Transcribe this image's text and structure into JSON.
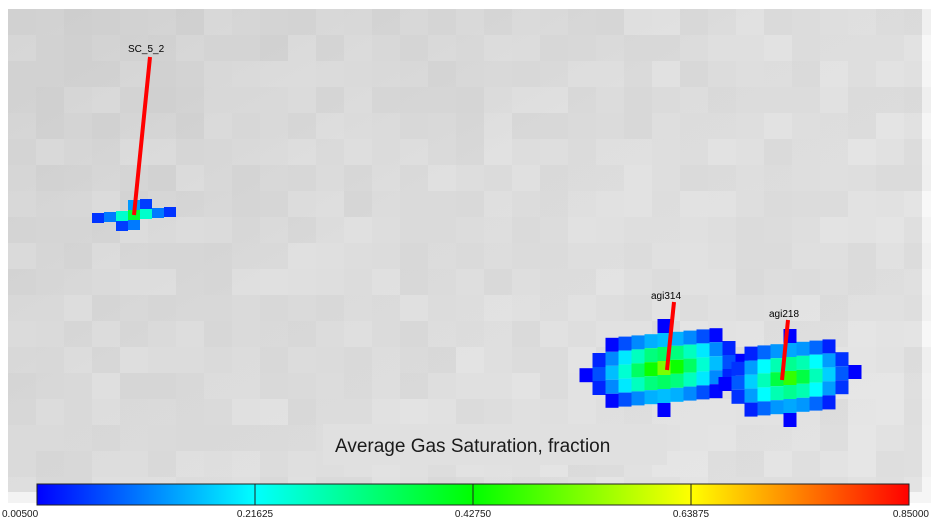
{
  "legend": {
    "title": "Average Gas Saturation, fraction",
    "min": 0.005,
    "max": 0.85,
    "ticks": [
      "0.00500",
      "0.21625",
      "0.42750",
      "0.63875",
      "0.85000"
    ],
    "tick_values": [
      0.005,
      0.21625,
      0.4275,
      0.63875,
      0.85
    ],
    "colors": [
      "#0000ff",
      "#00ffff",
      "#00ff00",
      "#ffff00",
      "#ff0000"
    ]
  },
  "wells": [
    {
      "name": "SC_5_2"
    },
    {
      "name": "agi314"
    },
    {
      "name": "agi218"
    }
  ],
  "well_color": "#ff0000",
  "background_color": "#d8d8d8"
}
